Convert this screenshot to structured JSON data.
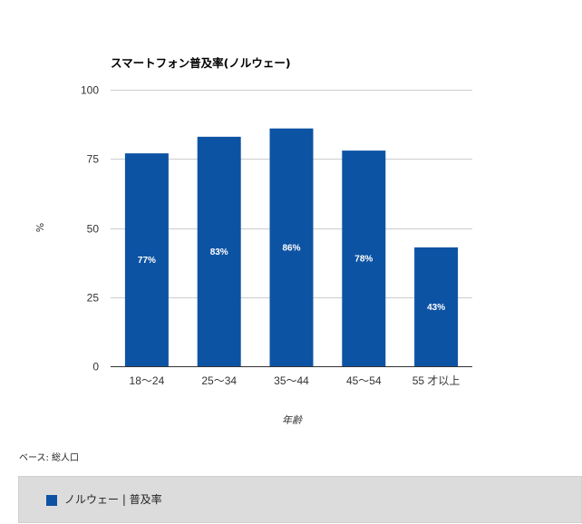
{
  "chart_data": {
    "type": "bar",
    "title": "スマートフォン普及率(ノルウェー)",
    "xlabel": "年齢",
    "ylabel": "%",
    "categories": [
      "18～24",
      "25～34",
      "35～44",
      "45～54",
      "55 才以上"
    ],
    "series": [
      {
        "name": "ノルウェー | 普及率",
        "values": [
          77,
          83,
          86,
          78,
          43
        ],
        "data_labels": [
          "77%",
          "83%",
          "86%",
          "78%",
          "43%"
        ],
        "color": "#0d53a3"
      }
    ],
    "ylim": [
      0,
      100
    ],
    "yticks": [
      0,
      25,
      50,
      75,
      100
    ],
    "grid": true,
    "legend_position": "bottom"
  },
  "note": "ベース: 総人口",
  "legend": {
    "label": "ノルウェー | 普及率",
    "color": "#0d53a3"
  }
}
